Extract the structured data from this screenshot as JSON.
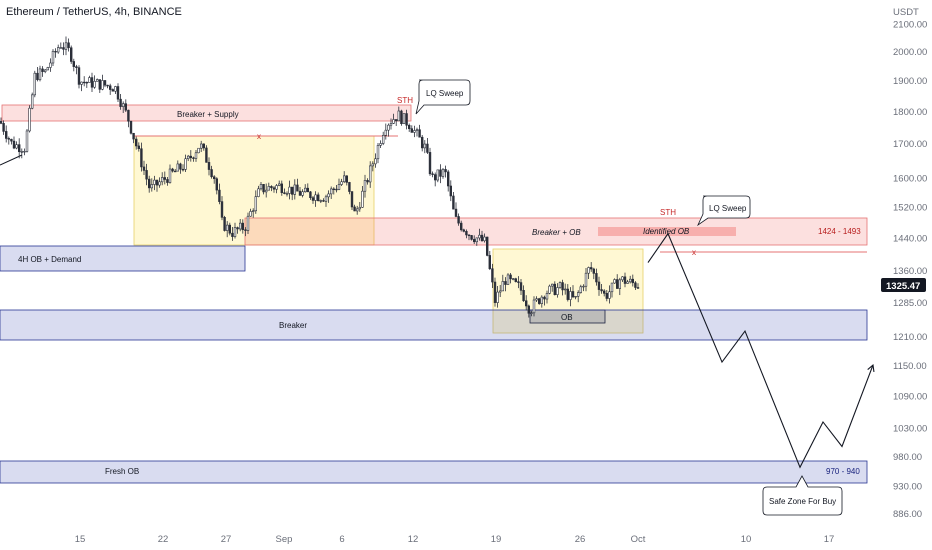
{
  "header": {
    "title": "Ethereum / TetherUS, 4h, BINANCE",
    "currency": "USDT"
  },
  "colors": {
    "up": "#26a69a",
    "down": "#ef5350",
    "candle": "#2a2e39",
    "supply_fill": "rgba(239,83,80,0.18)",
    "supply_stroke": "#e57373",
    "demand_fill": "rgba(63,81,181,0.20)",
    "demand_stroke": "#283593",
    "range_fill": "rgba(255,235,130,0.35)",
    "range_stroke": "#e6d16a",
    "price_badge": "#131722",
    "zone_label": "#b71c1c",
    "fresh_label": "#1a237e"
  },
  "chart_data": {
    "type": "candlestick",
    "symbol": "ETHUSDT",
    "timeframe": "4h",
    "y_scale": "log",
    "ylim": [
      860,
      2180
    ],
    "y_ticks": [
      2100,
      2000,
      1900,
      1800,
      1700,
      1600,
      1520,
      1440,
      1360,
      1285,
      1210,
      1150,
      1090,
      1030,
      980,
      930,
      886
    ],
    "y_tick_labels": [
      "2100.00",
      "2000.00",
      "1900.00",
      "1800.00",
      "1700.00",
      "1600.00",
      "1520.00",
      "1440.00",
      "1360.00",
      "1285.00",
      "1210.00",
      "1150.00",
      "1090.00",
      "1030.00",
      "980.00",
      "930.00",
      "886.00"
    ],
    "x_ticks": [
      "15",
      "22",
      "27",
      "Sep",
      "6",
      "12",
      "19",
      "26",
      "Oct",
      "10",
      "17"
    ],
    "last_price": "1325.47",
    "price_path": [
      {
        "t": 0,
        "p": 1770
      },
      {
        "t": 12,
        "p": 1700
      },
      {
        "t": 25,
        "p": 1690
      },
      {
        "t": 35,
        "p": 1920
      },
      {
        "t": 45,
        "p": 1930
      },
      {
        "t": 60,
        "p": 2030
      },
      {
        "t": 70,
        "p": 2000
      },
      {
        "t": 80,
        "p": 1900
      },
      {
        "t": 100,
        "p": 1890
      },
      {
        "t": 115,
        "p": 1880
      },
      {
        "t": 128,
        "p": 1780
      },
      {
        "t": 140,
        "p": 1660
      },
      {
        "t": 150,
        "p": 1570
      },
      {
        "t": 165,
        "p": 1600
      },
      {
        "t": 185,
        "p": 1640
      },
      {
        "t": 200,
        "p": 1700
      },
      {
        "t": 215,
        "p": 1600
      },
      {
        "t": 222,
        "p": 1480
      },
      {
        "t": 232,
        "p": 1455
      },
      {
        "t": 245,
        "p": 1470
      },
      {
        "t": 260,
        "p": 1570
      },
      {
        "t": 280,
        "p": 1580
      },
      {
        "t": 300,
        "p": 1560
      },
      {
        "t": 325,
        "p": 1550
      },
      {
        "t": 345,
        "p": 1600
      },
      {
        "t": 355,
        "p": 1500
      },
      {
        "t": 370,
        "p": 1620
      },
      {
        "t": 385,
        "p": 1760
      },
      {
        "t": 398,
        "p": 1790
      },
      {
        "t": 410,
        "p": 1760
      },
      {
        "t": 425,
        "p": 1690
      },
      {
        "t": 432,
        "p": 1600
      },
      {
        "t": 445,
        "p": 1620
      },
      {
        "t": 455,
        "p": 1490
      },
      {
        "t": 470,
        "p": 1450
      },
      {
        "t": 485,
        "p": 1430
      },
      {
        "t": 495,
        "p": 1290
      },
      {
        "t": 505,
        "p": 1340
      },
      {
        "t": 520,
        "p": 1320
      },
      {
        "t": 530,
        "p": 1270
      },
      {
        "t": 545,
        "p": 1310
      },
      {
        "t": 560,
        "p": 1320
      },
      {
        "t": 575,
        "p": 1290
      },
      {
        "t": 590,
        "p": 1370
      },
      {
        "t": 605,
        "p": 1300
      },
      {
        "t": 620,
        "p": 1340
      },
      {
        "t": 640,
        "p": 1325
      }
    ],
    "projection_path": [
      {
        "t": 648,
        "p": 1380
      },
      {
        "t": 668,
        "p": 1452
      },
      {
        "t": 722,
        "p": 1158
      },
      {
        "t": 745,
        "p": 1223
      },
      {
        "t": 800,
        "p": 962
      },
      {
        "t": 823,
        "p": 1042
      },
      {
        "t": 842,
        "p": 998
      },
      {
        "t": 873,
        "p": 1152
      }
    ],
    "annotations": {
      "breaker_supply": "Breaker + Supply",
      "sth_1": "STH",
      "lq_sweep_1": "LQ Sweep",
      "x_mark_1": "x",
      "demand_4h": "4H OB + Demand",
      "breaker_ob": "Breaker + OB",
      "sth_2": "STH",
      "lq_sweep_2": "LQ Sweep",
      "identified_ob": "Identified OB",
      "range_1": "1424 - 1493",
      "x_mark_2": "x",
      "ob": "OB",
      "breaker": "Breaker",
      "fresh_ob": "Fresh OB",
      "range_2": "970 - 940",
      "safe_zone": "Safe Zone For Buy"
    }
  }
}
